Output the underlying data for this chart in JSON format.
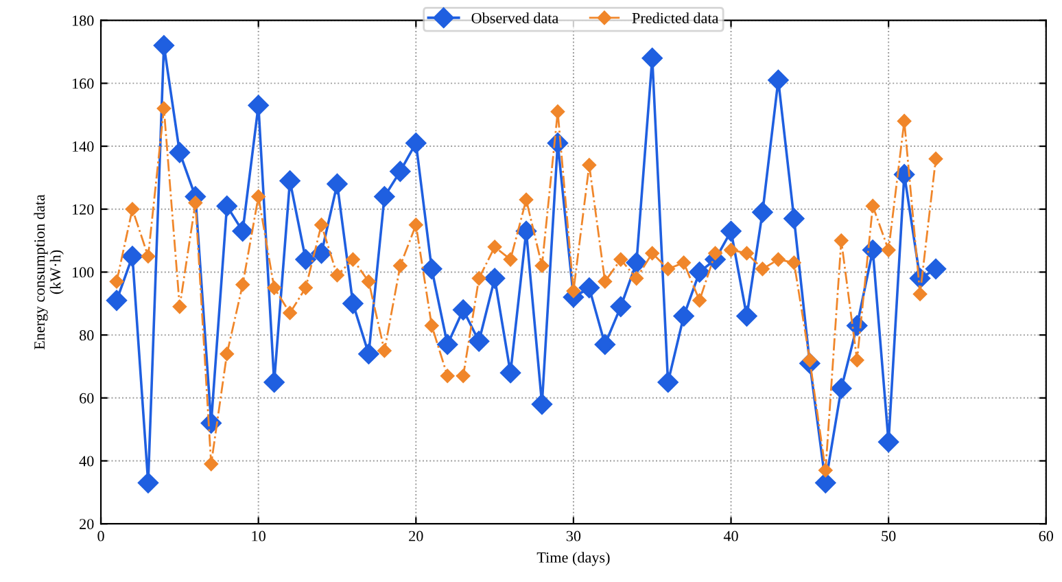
{
  "chart_data": {
    "type": "line",
    "xlabel": "Time (days)",
    "ylabel": "Energy consumption data\n(kW·h)",
    "x": [
      1,
      2,
      3,
      4,
      5,
      6,
      7,
      8,
      9,
      10,
      11,
      12,
      13,
      14,
      15,
      16,
      17,
      18,
      19,
      20,
      21,
      22,
      23,
      24,
      25,
      26,
      27,
      28,
      29,
      30,
      31,
      32,
      33,
      34,
      35,
      36,
      37,
      38,
      39,
      40,
      41,
      42,
      43,
      44,
      45,
      46,
      47,
      48,
      49,
      50,
      51,
      52,
      53
    ],
    "series": [
      {
        "name": "Observed data",
        "color": "#1f5fe0",
        "line_style": "solid",
        "values": [
          91,
          105,
          33,
          172,
          138,
          124,
          52,
          121,
          113,
          153,
          65,
          129,
          104,
          106,
          128,
          90,
          74,
          124,
          132,
          141,
          101,
          77,
          88,
          78,
          98,
          68,
          113,
          58,
          141,
          92,
          95,
          77,
          89,
          103,
          168,
          65,
          86,
          100,
          104,
          113,
          86,
          119,
          161,
          117,
          71,
          33,
          63,
          83,
          107,
          46,
          131,
          98,
          101
        ]
      },
      {
        "name": "Predicted data",
        "color": "#f0862a",
        "line_style": "dashed",
        "values": [
          97,
          120,
          105,
          152,
          89,
          122,
          39,
          74,
          96,
          124,
          95,
          87,
          95,
          115,
          99,
          104,
          97,
          75,
          102,
          115,
          83,
          67,
          67,
          98,
          108,
          104,
          123,
          102,
          151,
          94,
          134,
          97,
          104,
          98,
          106,
          101,
          103,
          91,
          106,
          107,
          106,
          101,
          104,
          103,
          72,
          37,
          110,
          72,
          121,
          107,
          148,
          93,
          136
        ]
      }
    ],
    "marker": "diamond",
    "xlim": [
      0,
      60
    ],
    "xticks": [
      0,
      10,
      20,
      30,
      40,
      50,
      60
    ],
    "ylim": [
      20,
      180
    ],
    "yticks": [
      20,
      40,
      60,
      80,
      100,
      120,
      140,
      160,
      180
    ],
    "grid": true,
    "legend": "top"
  }
}
